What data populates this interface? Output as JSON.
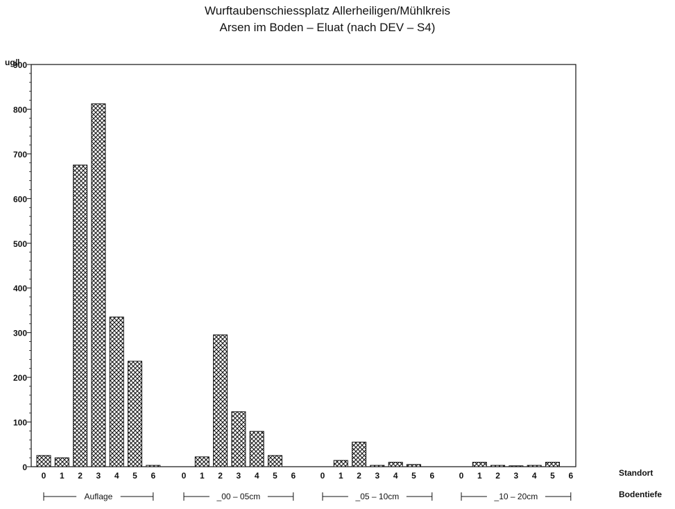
{
  "chart_data": {
    "type": "bar",
    "title": "Wurftaubenschiessplatz Allerheiligen/Mühlkreis",
    "subtitle": "Arsen im Boden – Eluat (nach DEV – S4)",
    "ylabel": "ug/l",
    "ylim": [
      0,
      900
    ],
    "yticks": [
      0,
      100,
      200,
      300,
      400,
      500,
      600,
      700,
      800,
      900
    ],
    "grid": false,
    "legend": "none",
    "bar_fill": "crosshatch",
    "x_row1_label": "Standort",
    "x_row2_label": "Bodentiefe",
    "groups": [
      {
        "label": "Auflage",
        "standorte": [
          "0",
          "1",
          "2",
          "3",
          "4",
          "5",
          "6"
        ],
        "values": [
          25,
          20,
          675,
          812,
          335,
          236,
          3
        ]
      },
      {
        "label": "_00 – 05cm",
        "standorte": [
          "0",
          "1",
          "2",
          "3",
          "4",
          "5",
          "6"
        ],
        "values": [
          0,
          22,
          295,
          123,
          79,
          25,
          0
        ]
      },
      {
        "label": "_05 – 10cm",
        "standorte": [
          "0",
          "1",
          "2",
          "3",
          "4",
          "5",
          "6"
        ],
        "values": [
          0,
          14,
          55,
          3,
          10,
          5,
          0
        ]
      },
      {
        "label": "_10 – 20cm",
        "standorte": [
          "0",
          "1",
          "2",
          "3",
          "4",
          "5",
          "6"
        ],
        "values": [
          0,
          10,
          3,
          2,
          3,
          10,
          0
        ]
      }
    ]
  }
}
